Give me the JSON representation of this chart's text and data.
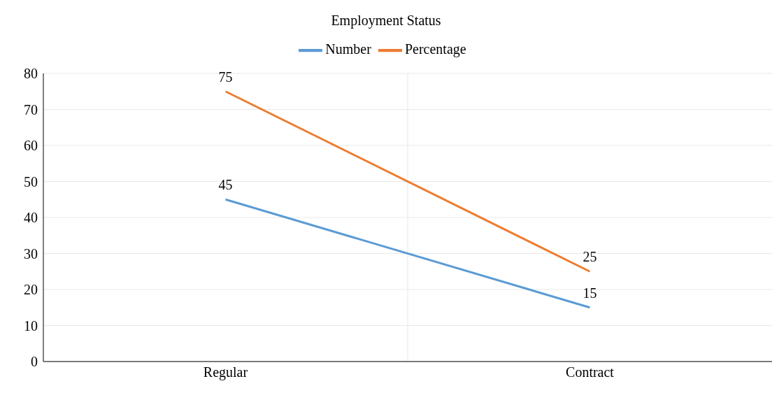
{
  "chart_data": {
    "type": "line",
    "title": "Employment Status",
    "categories": [
      "Regular",
      "Contract"
    ],
    "series": [
      {
        "name": "Number",
        "color": "#5b9bd5",
        "values": [
          45,
          15
        ]
      },
      {
        "name": "Percentage",
        "color": "#ed7d31",
        "values": [
          75,
          25
        ]
      }
    ],
    "ylim": [
      0,
      80
    ],
    "yticks": [
      0,
      10,
      20,
      30,
      40,
      50,
      60,
      70,
      80
    ],
    "grid": true,
    "legend": "top",
    "data_labels": true,
    "marker": "none"
  }
}
